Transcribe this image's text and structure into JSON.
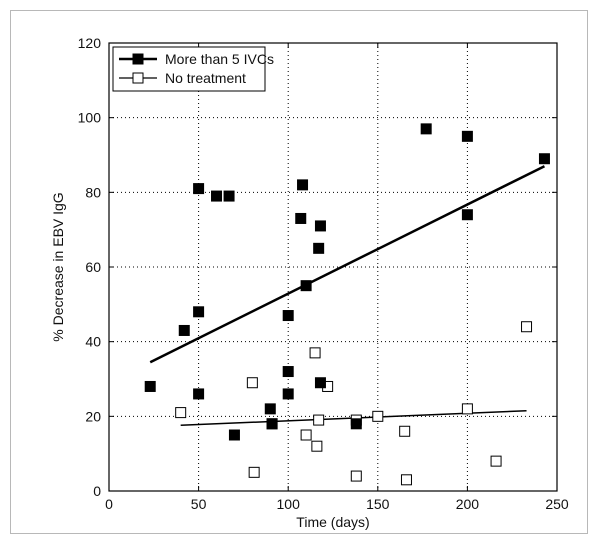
{
  "chart_data": {
    "type": "scatter",
    "xlabel": "Time (days)",
    "ylabel": "% Decrease in EBV IgG",
    "xlim": [
      0,
      250
    ],
    "ylim": [
      0,
      120
    ],
    "xticks": [
      0,
      50,
      100,
      150,
      200,
      250
    ],
    "yticks": [
      0,
      20,
      40,
      60,
      80,
      100,
      120
    ],
    "grid": "dotted",
    "legend_position": "top-left",
    "series": [
      {
        "name": "More than 5 IVCs",
        "marker": "filled-square",
        "color": "#000000",
        "points": [
          [
            23,
            28
          ],
          [
            42,
            43
          ],
          [
            50,
            81
          ],
          [
            50,
            48
          ],
          [
            50,
            26
          ],
          [
            60,
            79
          ],
          [
            67,
            79
          ],
          [
            70,
            15
          ],
          [
            90,
            22
          ],
          [
            91,
            18
          ],
          [
            100,
            47
          ],
          [
            100,
            32
          ],
          [
            100,
            26
          ],
          [
            107,
            73
          ],
          [
            108,
            82
          ],
          [
            110,
            55
          ],
          [
            117,
            65
          ],
          [
            118,
            29
          ],
          [
            118,
            71
          ],
          [
            138,
            18
          ],
          [
            177,
            97
          ],
          [
            200,
            95
          ],
          [
            200,
            74
          ],
          [
            243,
            89
          ]
        ],
        "trendline": {
          "x": [
            23,
            243
          ],
          "y": [
            34.5,
            87
          ]
        }
      },
      {
        "name": "No treatment",
        "marker": "open-square",
        "color": "#000000",
        "points": [
          [
            40,
            21
          ],
          [
            80,
            29
          ],
          [
            81,
            5
          ],
          [
            91,
            18
          ],
          [
            110,
            15
          ],
          [
            115,
            37
          ],
          [
            116,
            12
          ],
          [
            117,
            19
          ],
          [
            122,
            28
          ],
          [
            138,
            19
          ],
          [
            138,
            4
          ],
          [
            150,
            20
          ],
          [
            165,
            16
          ],
          [
            166,
            3
          ],
          [
            200,
            22
          ],
          [
            216,
            8
          ],
          [
            233,
            44
          ]
        ],
        "trendline": {
          "x": [
            40,
            233
          ],
          "y": [
            17.6,
            21.5
          ]
        }
      }
    ]
  }
}
